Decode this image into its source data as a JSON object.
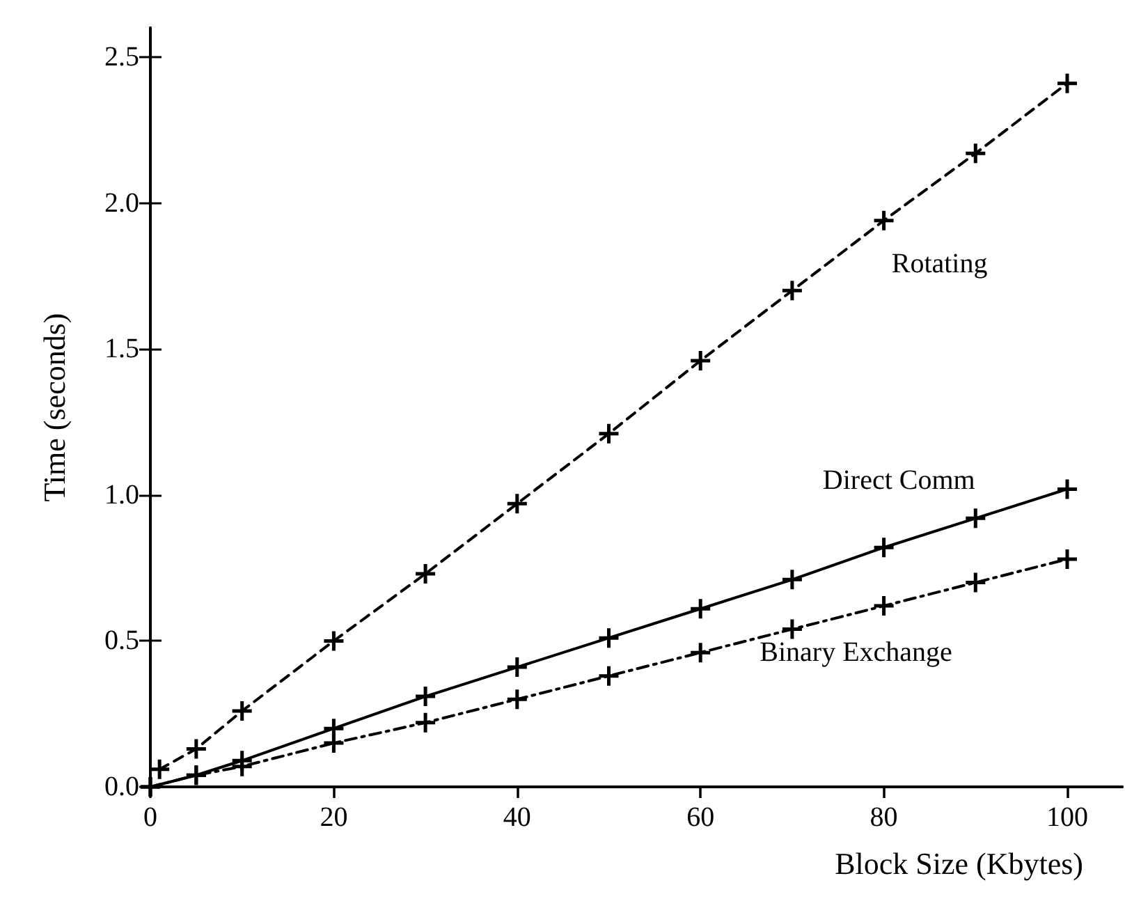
{
  "chart_data": {
    "type": "line",
    "xlabel": "Block Size (Kbytes)",
    "ylabel": "Time (seconds)",
    "xlim": [
      0,
      106
    ],
    "xticks": [
      0,
      20,
      40,
      60,
      80,
      100
    ],
    "ylim": [
      0,
      2.6
    ],
    "yticks": [
      {
        "value": 0,
        "label": "0.0"
      },
      {
        "value": 0.5,
        "label": "0.5"
      },
      {
        "value": 1,
        "label": "1.0"
      },
      {
        "value": 1.5,
        "label": "1.5"
      },
      {
        "value": 2,
        "label": "2.0"
      },
      {
        "value": 2.5,
        "label": "2.5"
      }
    ],
    "grid": false,
    "legend": false,
    "marker": "cross",
    "series": [
      {
        "name": "Rotating",
        "color": "#000000",
        "line_style": "dashed",
        "x": [
          1,
          5,
          10,
          20,
          30,
          40,
          50,
          60,
          70,
          80,
          90,
          100
        ],
        "values": [
          0.06,
          0.13,
          0.26,
          0.5,
          0.73,
          0.97,
          1.21,
          1.46,
          1.7,
          1.94,
          2.17,
          2.41
        ]
      },
      {
        "name": "Direct Comm",
        "color": "#000000",
        "line_style": "solid",
        "x": [
          0,
          5,
          10,
          20,
          30,
          40,
          50,
          60,
          70,
          80,
          90,
          100
        ],
        "values": [
          0,
          0.04,
          0.09,
          0.2,
          0.31,
          0.41,
          0.51,
          0.61,
          0.71,
          0.82,
          0.92,
          1.02
        ]
      },
      {
        "name": "Binary Exchange",
        "color": "#000000",
        "line_style": "dotted",
        "x": [
          0,
          5,
          10,
          20,
          30,
          40,
          50,
          60,
          70,
          80,
          90,
          100
        ],
        "values": [
          0,
          0.04,
          0.07,
          0.15,
          0.22,
          0.3,
          0.38,
          0.46,
          0.54,
          0.62,
          0.7,
          0.78
        ]
      }
    ]
  }
}
